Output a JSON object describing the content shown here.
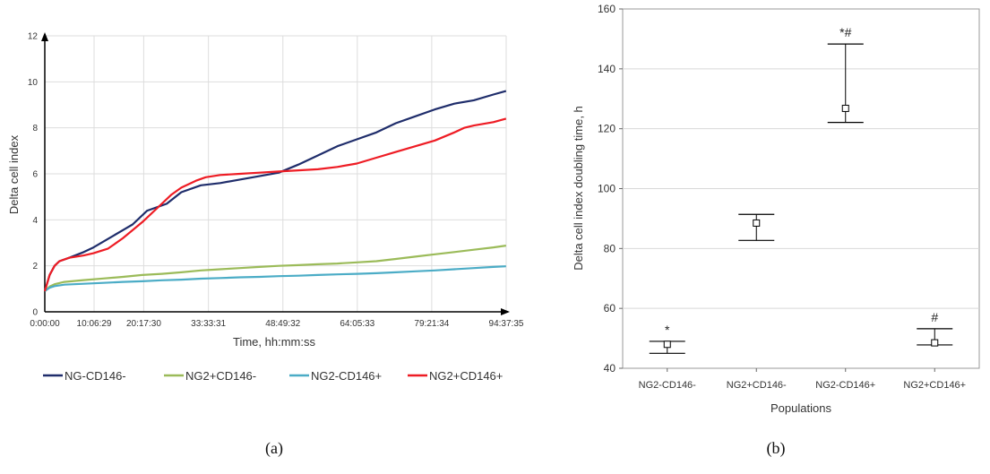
{
  "chart_data": [
    {
      "type": "line",
      "panel_label": "(a)",
      "xlabel": "Time, hh:mm:ss",
      "ylabel": "Delta cell index",
      "ylim": [
        0,
        12
      ],
      "yticks": [
        0,
        2,
        4,
        6,
        8,
        10,
        12
      ],
      "xlim": [
        0,
        94.63
      ],
      "xticks": [
        {
          "v": 0,
          "label": "0:00:00"
        },
        {
          "v": 10.11,
          "label": "10:06:29"
        },
        {
          "v": 20.29,
          "label": "20:17:30"
        },
        {
          "v": 33.56,
          "label": "33:33:31"
        },
        {
          "v": 48.83,
          "label": "48:49:32"
        },
        {
          "v": 64.09,
          "label": "64:05:33"
        },
        {
          "v": 79.36,
          "label": "79:21:34"
        },
        {
          "v": 94.63,
          "label": "94:37:35"
        }
      ],
      "legend_position": "bottom",
      "series": [
        {
          "name": "NG-CD146-",
          "color": "#1f2d6b",
          "x": [
            0,
            1,
            2,
            3,
            5,
            8,
            10,
            14,
            18,
            21,
            25,
            28,
            32,
            36,
            40,
            44,
            48,
            52,
            56,
            60,
            64,
            68,
            72,
            76,
            80,
            84,
            88,
            92,
            94.6
          ],
          "y": [
            0.9,
            1.6,
            2.0,
            2.2,
            2.35,
            2.6,
            2.8,
            3.3,
            3.8,
            4.4,
            4.7,
            5.2,
            5.5,
            5.6,
            5.75,
            5.9,
            6.05,
            6.4,
            6.8,
            7.2,
            7.5,
            7.8,
            8.2,
            8.5,
            8.8,
            9.05,
            9.2,
            9.45,
            9.6
          ]
        },
        {
          "name": "NG2+CD146-",
          "color": "#9bbb59",
          "x": [
            0,
            1,
            2,
            4,
            8,
            12,
            16,
            20,
            24,
            28,
            32,
            36,
            40,
            44,
            48,
            52,
            56,
            60,
            64,
            68,
            72,
            76,
            80,
            84,
            88,
            92,
            94.6
          ],
          "y": [
            0.9,
            1.1,
            1.2,
            1.3,
            1.38,
            1.45,
            1.52,
            1.6,
            1.65,
            1.72,
            1.8,
            1.85,
            1.9,
            1.95,
            2.0,
            2.03,
            2.07,
            2.1,
            2.15,
            2.2,
            2.3,
            2.4,
            2.5,
            2.6,
            2.7,
            2.8,
            2.88
          ]
        },
        {
          "name": "NG2-CD146+",
          "color": "#4bacc6",
          "x": [
            0,
            1,
            2,
            4,
            8,
            12,
            16,
            20,
            24,
            28,
            32,
            36,
            40,
            44,
            48,
            52,
            56,
            60,
            64,
            68,
            72,
            76,
            80,
            84,
            88,
            92,
            94.6
          ],
          "y": [
            0.9,
            1.05,
            1.12,
            1.18,
            1.22,
            1.26,
            1.3,
            1.33,
            1.37,
            1.4,
            1.44,
            1.47,
            1.5,
            1.52,
            1.55,
            1.57,
            1.6,
            1.63,
            1.65,
            1.68,
            1.72,
            1.76,
            1.8,
            1.85,
            1.9,
            1.95,
            1.98
          ]
        },
        {
          "name": "NG2+CD146+",
          "color": "#ee1c24",
          "x": [
            0,
            1,
            2,
            3,
            5,
            8,
            10,
            13,
            16,
            20,
            23,
            26,
            28,
            31,
            33,
            36,
            40,
            44,
            48,
            52,
            56,
            60,
            64,
            68,
            72,
            76,
            80,
            84,
            86,
            88,
            92,
            94.6
          ],
          "y": [
            0.9,
            1.6,
            2.0,
            2.2,
            2.35,
            2.45,
            2.55,
            2.75,
            3.2,
            3.9,
            4.5,
            5.1,
            5.4,
            5.7,
            5.85,
            5.95,
            6.0,
            6.05,
            6.1,
            6.15,
            6.2,
            6.3,
            6.45,
            6.7,
            6.95,
            7.2,
            7.45,
            7.8,
            8.0,
            8.1,
            8.25,
            8.4
          ]
        }
      ]
    },
    {
      "type": "errorbar",
      "panel_label": "(b)",
      "xlabel": "Populations",
      "ylabel": "Delta cell index doubling time, h",
      "ylim": [
        40,
        160
      ],
      "yticks": [
        40,
        60,
        80,
        100,
        120,
        140,
        160
      ],
      "categories": [
        "NG2-CD146-",
        "NG2+CD146-",
        "NG2-CD146+",
        "NG2+CD146+"
      ],
      "values": [
        48,
        88.5,
        126.8,
        48.5
      ],
      "lower": [
        45,
        82.7,
        122.1,
        47.8
      ],
      "upper": [
        49,
        91.4,
        148.3,
        53.2
      ],
      "annotations": [
        "*",
        "",
        "*#",
        "#"
      ],
      "grid": true
    }
  ]
}
